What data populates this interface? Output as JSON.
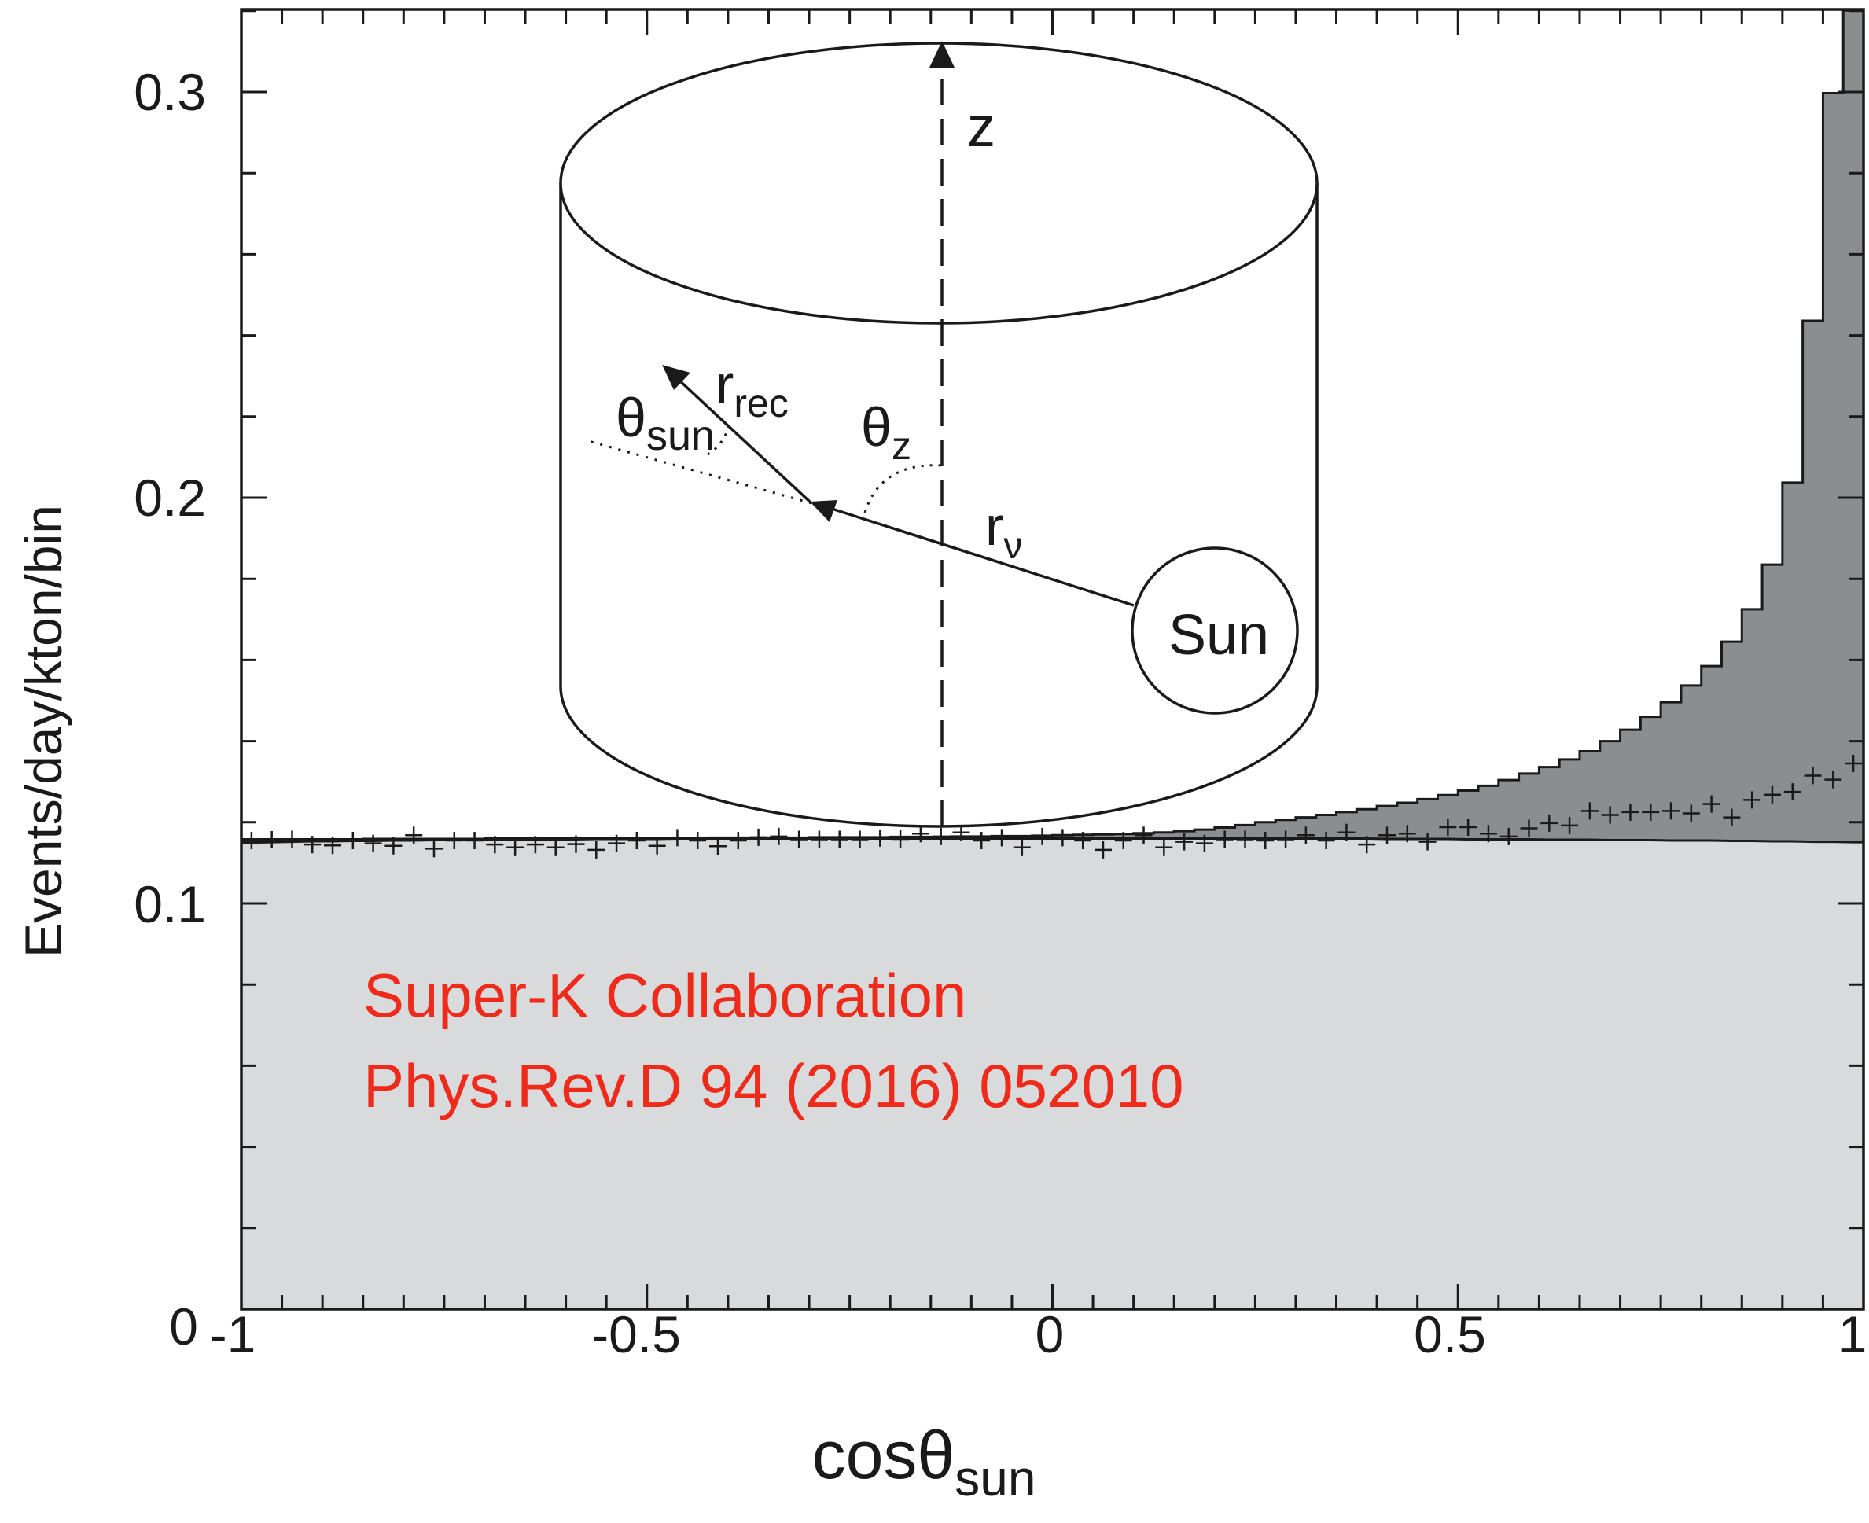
{
  "chart_data": {
    "type": "bar",
    "xlabel": "cosθ",
    "xlabel_sub": "sun",
    "ylabel": "Events/day/kton/bin",
    "xlim": [
      -1,
      1
    ],
    "ylim": [
      0,
      0.32
    ],
    "x_ticks": [
      {
        "value": -1,
        "label": "-1"
      },
      {
        "value": -0.5,
        "label": "-0.5"
      },
      {
        "value": 0,
        "label": "0"
      },
      {
        "value": 0.5,
        "label": "0.5"
      },
      {
        "value": 1,
        "label": "1"
      }
    ],
    "y_ticks": [
      {
        "value": 0,
        "label": "0"
      },
      {
        "value": 0.1,
        "label": "0.1"
      },
      {
        "value": 0.2,
        "label": "0.2"
      },
      {
        "value": 0.3,
        "label": "0.3"
      }
    ],
    "bin_width": 0.025,
    "x_start": -1,
    "series": [
      {
        "kind": "background",
        "fill": "#d9dadb",
        "values": [
          0.115,
          0.1151,
          0.1152,
          0.1153,
          0.1153,
          0.1154,
          0.1154,
          0.1155,
          0.1155,
          0.1156,
          0.1156,
          0.1157,
          0.1157,
          0.1157,
          0.1158,
          0.1158,
          0.1158,
          0.1159,
          0.1159,
          0.1159,
          0.1159,
          0.116,
          0.116,
          0.116,
          0.116,
          0.116,
          0.116,
          0.116,
          0.116,
          0.116,
          0.116,
          0.116,
          0.116,
          0.116,
          0.116,
          0.116,
          0.116,
          0.116,
          0.116,
          0.116,
          0.116,
          0.116,
          0.116,
          0.116,
          0.116,
          0.116,
          0.116,
          0.116,
          0.116,
          0.116,
          0.116,
          0.116,
          0.116,
          0.116,
          0.116,
          0.116,
          0.1159,
          0.1159,
          0.1159,
          0.1159,
          0.1158,
          0.1158,
          0.1158,
          0.1158,
          0.1157,
          0.1157,
          0.1157,
          0.1156,
          0.1156,
          0.1156,
          0.1155,
          0.1155,
          0.1155,
          0.1154,
          0.1154,
          0.1153,
          0.1153,
          0.1152,
          0.1152,
          0.1151
        ]
      },
      {
        "kind": "signal_plus_background",
        "fill": "#8c8d8f",
        "values": [
          0.1158,
          0.1158,
          0.1158,
          0.1158,
          0.1158,
          0.1158,
          0.1159,
          0.1159,
          0.1159,
          0.1159,
          0.1159,
          0.1159,
          0.116,
          0.116,
          0.116,
          0.116,
          0.116,
          0.116,
          0.1161,
          0.1161,
          0.1161,
          0.1161,
          0.1161,
          0.1162,
          0.1162,
          0.1162,
          0.1162,
          0.1162,
          0.1163,
          0.1163,
          0.1163,
          0.1163,
          0.1164,
          0.1164,
          0.1164,
          0.1165,
          0.1165,
          0.1166,
          0.1166,
          0.1167,
          0.1168,
          0.1169,
          0.117,
          0.1171,
          0.1173,
          0.1175,
          0.1178,
          0.1182,
          0.1187,
          0.1193,
          0.12,
          0.1206,
          0.1212,
          0.1218,
          0.1225,
          0.1232,
          0.124,
          0.1248,
          0.1257,
          0.1267,
          0.1278,
          0.129,
          0.1304,
          0.132,
          0.1336,
          0.1355,
          0.1375,
          0.14,
          0.1428,
          0.146,
          0.1496,
          0.1537,
          0.1585,
          0.1645,
          0.1725,
          0.1835,
          0.2037,
          0.2436,
          0.2997,
          0.3201
        ]
      }
    ],
    "data_points": {
      "marker": "+",
      "y": [
        0.1155,
        0.1157,
        0.1158,
        0.1145,
        0.1143,
        0.1155,
        0.1148,
        0.1142,
        0.1168,
        0.1135,
        0.1155,
        0.1155,
        0.1145,
        0.1138,
        0.1145,
        0.1138,
        0.1146,
        0.1132,
        0.1148,
        0.1155,
        0.1142,
        0.1162,
        0.1155,
        0.1141,
        0.1155,
        0.1163,
        0.1165,
        0.1158,
        0.1158,
        0.1158,
        0.1158,
        0.1161,
        0.1159,
        0.1172,
        0.1165,
        0.1175,
        0.1155,
        0.1162,
        0.1138,
        0.1165,
        0.1162,
        0.1155,
        0.1132,
        0.1155,
        0.1168,
        0.1138,
        0.1152,
        0.1148,
        0.1158,
        0.1158,
        0.1155,
        0.1158,
        0.1168,
        0.1155,
        0.1175,
        0.1145,
        0.1168,
        0.1172,
        0.1152,
        0.1188,
        0.1188,
        0.1172,
        0.1165,
        0.1185,
        0.1198,
        0.1192,
        0.1228,
        0.1218,
        0.1225,
        0.1225,
        0.1228,
        0.1222,
        0.1245,
        0.1212,
        0.1255,
        0.1268,
        0.1275,
        0.1315,
        0.1305,
        0.1345
      ]
    },
    "annotations": [
      {
        "text": "Super-K Collaboration",
        "color": "#ee2a1b"
      },
      {
        "text": "Phys.Rev.D 94 (2016) 052010",
        "color": "#ee2a1b"
      }
    ],
    "inset_diagram": {
      "axis_label": "z",
      "theta_sun": "θ",
      "theta_sun_sub": "sun",
      "r_rec": "r",
      "r_rec_sub": "rec",
      "theta_z": "θ",
      "theta_z_sub": "z",
      "r_nu": "r",
      "r_nu_sub": "ν",
      "sun_label": "Sun"
    }
  }
}
